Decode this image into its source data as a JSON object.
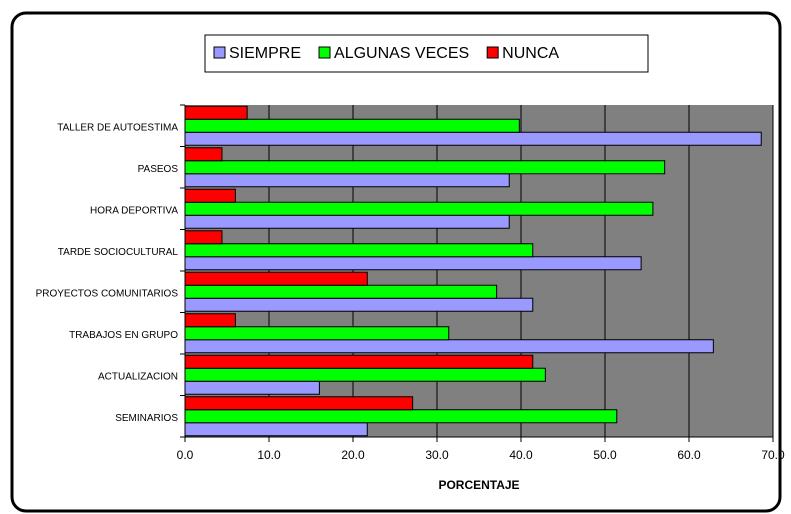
{
  "chart_data": {
    "type": "bar",
    "orientation": "horizontal",
    "x_label": "PORCENTAJE",
    "categories": [
      "TALLER  DE AUTOESTIMA",
      "PASEOS",
      "HORA DEPORTIVA",
      "TARDE SOCIOCULTURAL",
      "PROYECTOS COMUNITARIOS",
      "TRABAJOS EN GRUPO",
      "ACTUALIZACION",
      "SEMINARIOS"
    ],
    "series": [
      {
        "name": "SIEMPRE",
        "color": "#9999ff",
        "values": [
          68.6,
          38.6,
          38.6,
          54.3,
          41.4,
          62.9,
          16.0,
          21.7
        ]
      },
      {
        "name": "ALGUNAS VECES",
        "color": "#00ff00",
        "values": [
          39.8,
          57.1,
          55.7,
          41.4,
          37.1,
          31.4,
          42.9,
          51.4
        ]
      },
      {
        "name": "NUNCA",
        "color": "#ff0000",
        "values": [
          7.4,
          4.4,
          6.0,
          4.4,
          21.7,
          6.0,
          41.4,
          27.1
        ]
      }
    ],
    "xlim": [
      0,
      70
    ],
    "xticks": [
      {
        "value": 0,
        "label": "0.0"
      },
      {
        "value": 10,
        "label": "10.0"
      },
      {
        "value": 20,
        "label": "20.0"
      },
      {
        "value": 30,
        "label": "30.0"
      },
      {
        "value": 40,
        "label": "40.0"
      },
      {
        "value": 50,
        "label": "50.0"
      },
      {
        "value": 60,
        "label": "60.0"
      },
      {
        "value": 70,
        "label": "70.0"
      }
    ],
    "grid": true,
    "legend": "top"
  }
}
